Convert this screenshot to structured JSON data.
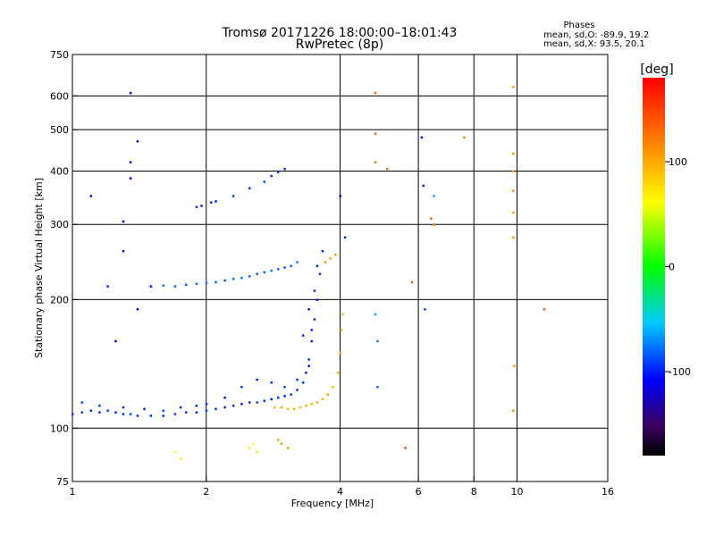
{
  "chart_data": {
    "type": "scatter",
    "title_line1": "Tromsø 20171226 18:00:00–18:01:43",
    "title_line2": "RwPretec (8p)",
    "stats": {
      "heading": "Phases",
      "line_o": "mean, sd,O: -89.9, 19.2",
      "line_x": "mean, sd,X:  93.5, 20.1"
    },
    "xlabel": "Frequency [MHz]",
    "ylabel": "Stationary phase Virtual Height [km]",
    "x_scale": "log",
    "y_scale": "log",
    "xlim": [
      1,
      16
    ],
    "ylim": [
      75,
      750
    ],
    "x_ticks": [
      1,
      2,
      4,
      6,
      8,
      10,
      16
    ],
    "y_ticks": [
      75,
      100,
      200,
      300,
      400,
      500,
      600,
      750
    ],
    "x_grid": [
      2,
      4,
      6,
      8,
      10
    ],
    "y_grid": [
      100,
      200,
      300,
      400,
      500,
      600
    ],
    "grid": true,
    "colorbar": {
      "label": "[deg]",
      "range": [
        -180,
        180
      ],
      "ticks": [
        100,
        0,
        -100
      ]
    },
    "series": [
      {
        "points": [
          [
            1.0,
            108,
            -95
          ],
          [
            1.05,
            109,
            -90
          ],
          [
            1.1,
            110,
            -100
          ],
          [
            1.15,
            109,
            -95
          ],
          [
            1.2,
            110,
            -90
          ],
          [
            1.25,
            109,
            -100
          ],
          [
            1.3,
            108,
            -95
          ],
          [
            1.35,
            108,
            -90
          ],
          [
            1.4,
            107,
            -95
          ],
          [
            1.5,
            107,
            -100
          ],
          [
            1.6,
            107,
            -95
          ],
          [
            1.7,
            108,
            -90
          ],
          [
            1.8,
            109,
            -95
          ],
          [
            1.9,
            109,
            -100
          ],
          [
            2.0,
            110,
            -90
          ],
          [
            2.1,
            111,
            -95
          ],
          [
            2.2,
            112,
            -100
          ],
          [
            2.3,
            113,
            -95
          ],
          [
            2.4,
            114,
            -100
          ],
          [
            2.5,
            115,
            -95
          ],
          [
            2.6,
            115,
            -90
          ],
          [
            2.7,
            116,
            -95
          ],
          [
            2.8,
            117,
            -100
          ],
          [
            2.9,
            118,
            -95
          ],
          [
            3.0,
            119,
            -100
          ],
          [
            3.1,
            120,
            -95
          ],
          [
            3.2,
            123,
            -100
          ],
          [
            3.3,
            128,
            -95
          ],
          [
            3.35,
            135,
            -100
          ],
          [
            3.4,
            145,
            -95
          ],
          [
            3.45,
            160,
            -100
          ],
          [
            3.5,
            180,
            -95
          ],
          [
            3.55,
            200,
            -100
          ],
          [
            3.6,
            230,
            -95
          ],
          [
            3.65,
            260,
            -100
          ],
          [
            1.05,
            115,
            -90
          ],
          [
            1.15,
            113,
            -95
          ],
          [
            1.3,
            112,
            -95
          ],
          [
            1.45,
            111,
            -100
          ],
          [
            1.6,
            110,
            -90
          ],
          [
            1.75,
            112,
            -95
          ],
          [
            1.9,
            113,
            -100
          ],
          [
            2.0,
            114,
            -95
          ],
          [
            2.2,
            118,
            -100
          ],
          [
            2.4,
            125,
            -95
          ],
          [
            2.6,
            130,
            -100
          ],
          [
            2.8,
            128,
            -95
          ],
          [
            3.0,
            125,
            -90
          ],
          [
            3.2,
            130,
            -95
          ],
          [
            3.4,
            140,
            -100
          ],
          [
            3.3,
            165,
            -95
          ],
          [
            3.4,
            190,
            -100
          ],
          [
            3.5,
            210,
            -95
          ],
          [
            3.55,
            240,
            -100
          ],
          [
            3.45,
            170,
            -95
          ]
        ]
      },
      {
        "points": [
          [
            1.5,
            215,
            -80
          ],
          [
            1.6,
            216,
            -75
          ],
          [
            1.7,
            215,
            -80
          ],
          [
            1.8,
            217,
            -85
          ],
          [
            1.9,
            218,
            -80
          ],
          [
            2.0,
            219,
            -75
          ],
          [
            2.1,
            220,
            -80
          ],
          [
            2.2,
            222,
            -85
          ],
          [
            2.3,
            224,
            -80
          ],
          [
            2.4,
            225,
            -75
          ],
          [
            2.5,
            227,
            -80
          ],
          [
            2.6,
            230,
            -85
          ],
          [
            2.7,
            232,
            -80
          ],
          [
            2.8,
            234,
            -75
          ],
          [
            2.9,
            236,
            -80
          ],
          [
            3.0,
            238,
            -85
          ],
          [
            3.1,
            240,
            -80
          ],
          [
            3.2,
            245,
            -75
          ]
        ]
      },
      {
        "points": [
          [
            2.3,
            350,
            -90
          ],
          [
            2.5,
            365,
            -95
          ],
          [
            2.7,
            378,
            -90
          ],
          [
            2.8,
            390,
            -95
          ],
          [
            2.9,
            398,
            -90
          ],
          [
            3.0,
            405,
            -95
          ],
          [
            2.1,
            340,
            -100
          ],
          [
            1.9,
            330,
            -95
          ],
          [
            1.95,
            332,
            -100
          ],
          [
            2.05,
            338,
            -95
          ]
        ]
      },
      {
        "points": [
          [
            2.85,
            112,
            95
          ],
          [
            2.95,
            112,
            100
          ],
          [
            3.05,
            111,
            95
          ],
          [
            3.15,
            111,
            100
          ],
          [
            3.25,
            112,
            95
          ],
          [
            3.35,
            113,
            100
          ],
          [
            3.45,
            114,
            95
          ],
          [
            3.55,
            115,
            100
          ],
          [
            3.65,
            117,
            95
          ],
          [
            3.75,
            120,
            100
          ],
          [
            3.85,
            125,
            95
          ],
          [
            3.95,
            135,
            100
          ],
          [
            4.0,
            150,
            95
          ],
          [
            4.02,
            170,
            100
          ],
          [
            4.05,
            185,
            95
          ],
          [
            3.7,
            245,
            110
          ],
          [
            3.8,
            250,
            105
          ],
          [
            3.9,
            255,
            110
          ]
        ]
      },
      {
        "points": [
          [
            1.7,
            88,
            60
          ],
          [
            1.75,
            85,
            70
          ],
          [
            2.5,
            90,
            65
          ],
          [
            2.55,
            92,
            60
          ],
          [
            2.6,
            88,
            70
          ],
          [
            2.95,
            92,
            110
          ],
          [
            3.05,
            90,
            105
          ],
          [
            2.9,
            94,
            100
          ]
        ]
      },
      {
        "points": [
          [
            4.8,
            610,
            130
          ],
          [
            4.8,
            490,
            135
          ],
          [
            4.8,
            420,
            125
          ],
          [
            5.1,
            405,
            130
          ],
          [
            6.5,
            300,
            125
          ],
          [
            6.4,
            310,
            130
          ],
          [
            7.6,
            480,
            120
          ],
          [
            11.5,
            190,
            140
          ],
          [
            5.8,
            220,
            140
          ],
          [
            5.6,
            90,
            150
          ]
        ]
      },
      {
        "points": [
          [
            9.8,
            630,
            105
          ],
          [
            9.8,
            440,
            110
          ],
          [
            9.8,
            400,
            105
          ],
          [
            9.8,
            360,
            110
          ],
          [
            9.8,
            320,
            105
          ],
          [
            9.8,
            280,
            110
          ],
          [
            9.85,
            140,
            105
          ],
          [
            9.8,
            110,
            110
          ]
        ]
      },
      {
        "points": [
          [
            1.35,
            610,
            -120
          ],
          [
            1.35,
            420,
            -115
          ],
          [
            1.35,
            385,
            -110
          ],
          [
            1.4,
            470,
            -120
          ],
          [
            1.3,
            305,
            -110
          ],
          [
            1.5,
            215,
            -100
          ],
          [
            1.3,
            260,
            -105
          ],
          [
            1.2,
            215,
            -100
          ],
          [
            1.25,
            160,
            -110
          ],
          [
            1.4,
            190,
            -120
          ],
          [
            1.1,
            350,
            -110
          ],
          [
            4.1,
            280,
            -100
          ],
          [
            4.0,
            350,
            -105
          ],
          [
            6.1,
            480,
            -110
          ],
          [
            6.15,
            370,
            -100
          ],
          [
            6.5,
            350,
            -60
          ],
          [
            4.8,
            185,
            -60
          ],
          [
            4.85,
            160,
            -70
          ],
          [
            4.85,
            125,
            -80
          ],
          [
            6.2,
            190,
            -90
          ]
        ]
      }
    ]
  }
}
